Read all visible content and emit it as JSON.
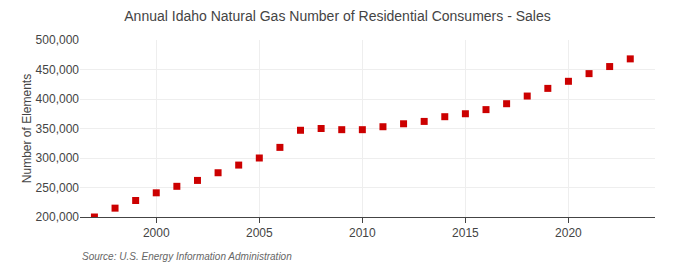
{
  "chart_data": {
    "type": "scatter",
    "title": "Annual Idaho Natural Gas Number of Residential Consumers - Sales",
    "ylabel": "Number of Elements",
    "annotations": [
      "Source: U.S. Energy Information Administration"
    ],
    "x": [
      1997,
      1998,
      1999,
      2000,
      2001,
      2002,
      2003,
      2004,
      2005,
      2006,
      2007,
      2008,
      2009,
      2010,
      2011,
      2012,
      2013,
      2014,
      2015,
      2016,
      2017,
      2018,
      2019,
      2020,
      2021,
      2022,
      2023
    ],
    "values": [
      200000,
      215000,
      228000,
      241000,
      252000,
      262000,
      275000,
      288000,
      300000,
      318000,
      347000,
      350000,
      348000,
      348000,
      353000,
      358000,
      362000,
      370000,
      375000,
      382000,
      392000,
      405000,
      418000,
      430000,
      443000,
      455000,
      468000
    ],
    "color": "#cc0000",
    "marker": "square",
    "xlim": [
      1996.3,
      2024.2
    ],
    "xticks": [
      2000,
      2005,
      2010,
      2015,
      2020
    ],
    "ylim": [
      200000,
      500000
    ],
    "yticks": [
      {
        "value": 200000,
        "label": "200,000"
      },
      {
        "value": 250000,
        "label": "250,000"
      },
      {
        "value": 300000,
        "label": "300,000"
      },
      {
        "value": 350000,
        "label": "350,000"
      },
      {
        "value": 400000,
        "label": "400,000"
      },
      {
        "value": 450000,
        "label": "450,000"
      },
      {
        "value": 500000,
        "label": "500,000"
      }
    ],
    "grid": true
  }
}
